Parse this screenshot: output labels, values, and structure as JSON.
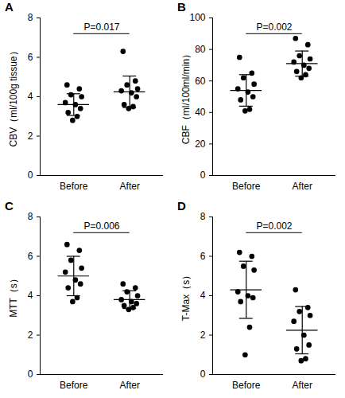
{
  "chart_data": [
    {
      "type": "scatter",
      "panel": "A",
      "y_label": "CBV（ml/100g tissue）",
      "categories": [
        "Before",
        "After"
      ],
      "values": [
        [
          4.6,
          4.4,
          4.1,
          4.0,
          3.7,
          3.6,
          3.4,
          3.2,
          3.0,
          2.8
        ],
        [
          6.3,
          4.8,
          4.6,
          4.4,
          4.3,
          4.2,
          4.0,
          3.6,
          3.5,
          3.4
        ]
      ],
      "mean": [
        3.6,
        4.25
      ],
      "sd": [
        0.55,
        0.8
      ],
      "annotation": "P=0.017",
      "color": "#000000",
      "marker": "circle",
      "ylim": [
        0,
        8
      ],
      "yticks": [
        0,
        2,
        4,
        6,
        8
      ]
    },
    {
      "type": "scatter",
      "panel": "B",
      "y_label": "CBF（ml/100ml/min）",
      "categories": [
        "Before",
        "After"
      ],
      "values": [
        [
          75,
          65,
          62,
          58,
          55,
          53,
          50,
          48,
          42,
          41
        ],
        [
          87,
          83,
          76,
          74,
          72,
          70,
          68,
          66,
          64,
          62
        ]
      ],
      "mean": [
        54,
        71
      ],
      "sd": [
        10,
        8
      ],
      "annotation": "P=0.002",
      "color": "#000000",
      "marker": "circle",
      "ylim": [
        0,
        100
      ],
      "yticks": [
        0,
        20,
        40,
        60,
        80,
        100
      ]
    },
    {
      "type": "scatter",
      "panel": "C",
      "y_label": "MTT（s）",
      "categories": [
        "Before",
        "After"
      ],
      "values": [
        [
          6.6,
          6.3,
          5.8,
          5.4,
          5.2,
          4.8,
          4.6,
          4.4,
          3.9,
          3.7
        ],
        [
          4.6,
          4.4,
          4.2,
          4.0,
          3.8,
          3.7,
          3.6,
          3.5,
          3.4,
          3.3
        ]
      ],
      "mean": [
        5.0,
        3.8
      ],
      "sd": [
        1.0,
        0.45
      ],
      "annotation": "P=0.006",
      "color": "#000000",
      "marker": "circle",
      "ylim": [
        0,
        8
      ],
      "yticks": [
        0,
        2,
        4,
        6,
        8
      ]
    },
    {
      "type": "scatter",
      "panel": "D",
      "y_label": "T-Max（s）",
      "categories": [
        "Before",
        "After"
      ],
      "values": [
        [
          6.2,
          6.0,
          5.5,
          5.3,
          4.2,
          4.0,
          3.9,
          3.7,
          2.4,
          1.0
        ],
        [
          4.3,
          3.4,
          3.2,
          3.0,
          2.7,
          2.0,
          1.5,
          1.3,
          0.8,
          0.7
        ]
      ],
      "mean": [
        4.3,
        2.25
      ],
      "sd": [
        1.45,
        1.2
      ],
      "annotation": "P=0.002",
      "color": "#000000",
      "marker": "circle",
      "ylim": [
        0,
        8
      ],
      "yticks": [
        0,
        2,
        4,
        6,
        8
      ]
    }
  ]
}
